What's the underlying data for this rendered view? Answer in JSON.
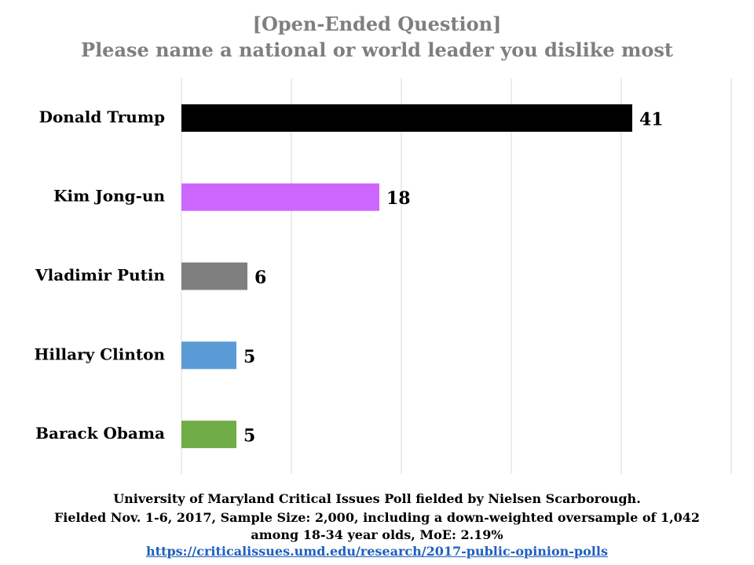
{
  "chart_data": {
    "type": "bar",
    "orientation": "horizontal",
    "title": "[Open-Ended Question]",
    "subtitle": "Please name a national or world leader you dislike most",
    "categories": [
      "Donald Trump",
      "Kim Jong-un",
      "Vladimir Putin",
      "Hillary Clinton",
      "Barack Obama"
    ],
    "values": [
      41,
      18,
      6,
      5,
      5
    ],
    "colors": [
      "#000000",
      "#cc66ff",
      "#7f7f7f",
      "#5b9bd5",
      "#70ad47"
    ],
    "xlim": [
      0,
      50
    ],
    "gridlines": [
      0,
      10,
      20,
      30,
      40,
      50
    ],
    "grid": true,
    "data_labels": true,
    "xlabel": "",
    "ylabel": ""
  },
  "footer": {
    "line1": "University of Maryland Critical Issues Poll fielded by Nielsen Scarborough.",
    "line2": "Fielded Nov. 1-6, 2017, Sample Size: 2,000, including a down-weighted oversample of 1,042",
    "line3": "among 18-34 year olds, MoE: 2.19%",
    "link": "https://criticalissues.umd.edu/research/2017-public-opinion-polls"
  }
}
